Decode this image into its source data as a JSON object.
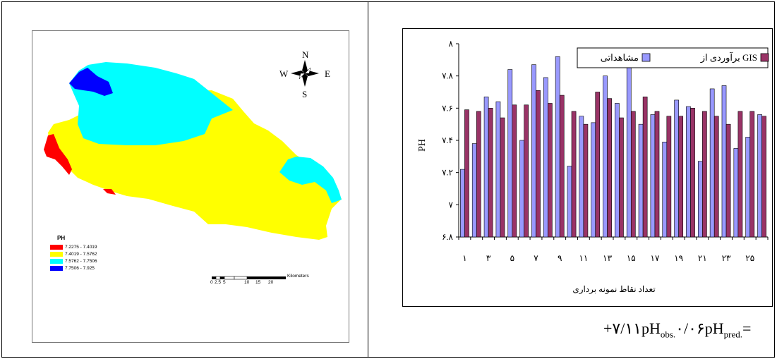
{
  "map": {
    "legend_title": "PH",
    "classes": [
      {
        "range": "7.2275 - 7.4019",
        "color": "#ff0000"
      },
      {
        "range": "7.4019 - 7.5762",
        "color": "#ffff00"
      },
      {
        "range": "7.5762 - 7.7506",
        "color": "#00ffff"
      },
      {
        "range": "7.7506 - 7.925",
        "color": "#0000ff"
      }
    ],
    "compass": {
      "n": "N",
      "s": "S",
      "e": "E",
      "w": "W"
    },
    "scale_ticks": [
      "0",
      "2.5",
      "5",
      "10",
      "15",
      "20"
    ],
    "scale_unit": "Kilometers"
  },
  "chart_data": {
    "type": "bar",
    "ylabel": "PH",
    "xlabel": "تعداد نقاط نمونه برداری",
    "ylim": [
      6.8,
      8.0
    ],
    "y_ticks": [
      "۶.۸",
      "۷",
      "۷.۲",
      "۷.۴",
      "۷.۶",
      "۷.۸",
      "۸"
    ],
    "x_tick_labels": [
      "۱",
      "۳",
      "۵",
      "۷",
      "۹",
      "۱۱",
      "۱۳",
      "۱۵",
      "۱۷",
      "۱۹",
      "۲۱",
      "۲۳",
      "۲۵"
    ],
    "x": [
      1,
      2,
      3,
      4,
      5,
      6,
      7,
      8,
      9,
      10,
      11,
      12,
      13,
      14,
      15,
      16,
      17,
      18,
      19,
      20,
      21,
      22,
      23,
      24,
      25,
      26
    ],
    "series": [
      {
        "name": "مشاهداتی",
        "color": "#9999ff",
        "values": [
          7.22,
          7.38,
          7.67,
          7.64,
          7.84,
          7.4,
          7.87,
          7.79,
          7.92,
          7.24,
          7.55,
          7.51,
          7.8,
          7.63,
          7.89,
          7.5,
          7.56,
          7.39,
          7.65,
          7.61,
          7.27,
          7.72,
          7.74,
          7.35,
          7.42,
          7.56
        ]
      },
      {
        "name": "برآوردی از GIS",
        "color": "#993366",
        "values": [
          7.59,
          7.58,
          7.6,
          7.54,
          7.62,
          7.62,
          7.71,
          7.63,
          7.68,
          7.58,
          7.5,
          7.7,
          7.66,
          7.54,
          7.58,
          7.67,
          7.58,
          7.55,
          7.55,
          7.6,
          7.58,
          7.55,
          7.5,
          7.58,
          7.58,
          7.55
        ]
      }
    ],
    "legend_position": "top-right",
    "grid": false
  },
  "equation": {
    "prefix": "+۷/۱۱pH",
    "sub1": "obs.",
    "mid": "۰/۰۶pH",
    "sub2": "pred.",
    "suffix": "="
  }
}
